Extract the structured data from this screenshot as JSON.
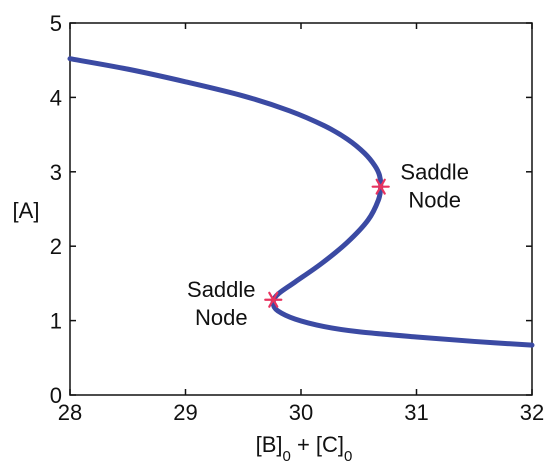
{
  "chart_data": {
    "type": "line",
    "title": "",
    "xlabel": {
      "main": "[B]",
      "sub1": "0",
      "mid": " + [C]",
      "sub2": "0"
    },
    "ylabel": "[A]",
    "xlim": [
      28,
      32
    ],
    "ylim": [
      0,
      5
    ],
    "xticks": [
      "28",
      "29",
      "30",
      "31",
      "32"
    ],
    "yticks": [
      "0",
      "1",
      "2",
      "3",
      "4",
      "5"
    ],
    "grid": false,
    "series": [
      {
        "color": "#3b4aa3",
        "x": [
          28.0,
          28.5,
          29.0,
          29.5,
          29.9,
          30.2,
          30.4,
          30.55,
          30.64,
          30.68,
          30.69,
          30.67,
          30.58,
          30.4,
          30.18,
          29.95,
          29.82,
          29.77,
          29.76,
          29.8,
          29.95,
          30.2,
          30.5,
          31.0,
          31.5,
          32.0
        ],
        "y": [
          4.52,
          4.38,
          4.21,
          4.02,
          3.82,
          3.62,
          3.44,
          3.25,
          3.08,
          2.95,
          2.8,
          2.62,
          2.35,
          2.05,
          1.77,
          1.52,
          1.38,
          1.3,
          1.22,
          1.13,
          1.02,
          0.92,
          0.85,
          0.78,
          0.72,
          0.67
        ]
      }
    ],
    "markers": [
      {
        "x": 30.69,
        "y": 2.8,
        "label_line1": "Saddle",
        "label_line2": "Node",
        "color": "#e8335f"
      },
      {
        "x": 29.76,
        "y": 1.28,
        "label_line1": "Saddle",
        "label_line2": "Node",
        "color": "#e8335f"
      }
    ]
  }
}
